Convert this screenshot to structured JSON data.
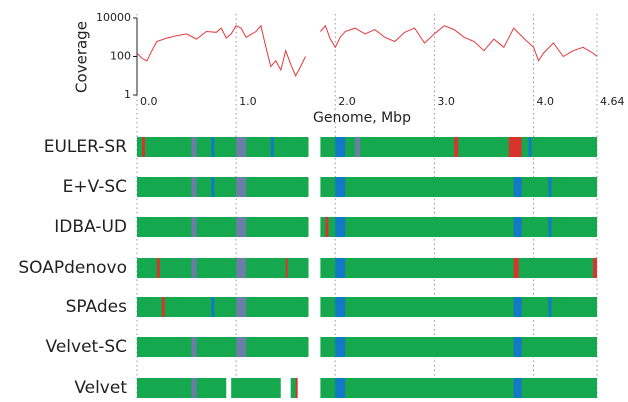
{
  "chart_data": [
    {
      "type": "line",
      "y_label": "Coverage",
      "x_label": "Genome, Mbp",
      "color": "#e8383b",
      "log_y": true,
      "ylim": [
        1,
        10000
      ],
      "yticks": [
        1,
        100,
        10000
      ],
      "xlim": [
        0,
        4.64
      ],
      "xticks": [
        {
          "value": 0,
          "label": "0.0"
        },
        {
          "value": 1,
          "label": "1.0"
        },
        {
          "value": 2,
          "label": "2.0"
        },
        {
          "value": 3,
          "label": "3.0"
        },
        {
          "value": 4,
          "label": "4.0"
        },
        4.64
      ],
      "x": [
        0,
        0.05,
        0.1,
        0.15,
        0.2,
        0.3,
        0.4,
        0.5,
        0.6,
        0.7,
        0.8,
        0.85,
        0.9,
        0.95,
        1.0,
        1.05,
        1.1,
        1.2,
        1.25,
        1.3,
        1.35,
        1.4,
        1.45,
        1.5,
        1.55,
        1.6,
        1.65,
        1.7,
        1.75,
        1.85,
        1.9,
        1.95,
        2.0,
        2.05,
        2.1,
        2.2,
        2.3,
        2.4,
        2.5,
        2.6,
        2.7,
        2.8,
        2.9,
        3.0,
        3.1,
        3.2,
        3.3,
        3.4,
        3.5,
        3.6,
        3.7,
        3.8,
        3.9,
        4.0,
        4.05,
        4.1,
        4.2,
        4.3,
        4.4,
        4.5,
        4.6,
        4.64
      ],
      "values": [
        150,
        80,
        60,
        200,
        600,
        900,
        1200,
        1500,
        800,
        2000,
        1800,
        3000,
        900,
        1500,
        4000,
        3000,
        1000,
        2000,
        4000,
        300,
        30,
        60,
        20,
        200,
        40,
        10,
        30,
        100,
        null,
        2000,
        4000,
        800,
        300,
        1000,
        2000,
        3000,
        1500,
        2500,
        1000,
        600,
        1800,
        3000,
        500,
        1500,
        4000,
        2500,
        1000,
        600,
        200,
        800,
        300,
        3000,
        900,
        300,
        60,
        150,
        500,
        100,
        200,
        300,
        150,
        100
      ]
    },
    {
      "type": "track",
      "tracks": [
        {
          "name": "EULER-SR",
          "segments": [
            [
              0,
              1.73,
              "#16a84f"
            ],
            [
              1.85,
              4.64,
              "#16a84f"
            ],
            [
              0.05,
              0.08,
              "#d9342b"
            ],
            [
              0.55,
              0.6,
              "#6b7fa6"
            ],
            [
              0.75,
              0.78,
              "#1478c8"
            ],
            [
              1.0,
              1.1,
              "#6b7fa6"
            ],
            [
              1.35,
              1.38,
              "#1478c8"
            ],
            [
              2.0,
              2.1,
              "#1478c8"
            ],
            [
              2.2,
              2.25,
              "#6b7fa6"
            ],
            [
              3.2,
              3.24,
              "#d9342b"
            ],
            [
              3.75,
              3.88,
              "#d9342b"
            ],
            [
              3.95,
              3.98,
              "#1478c8"
            ]
          ]
        },
        {
          "name": "E+V-SC",
          "segments": [
            [
              0,
              1.73,
              "#16a84f"
            ],
            [
              1.85,
              4.64,
              "#16a84f"
            ],
            [
              0.55,
              0.6,
              "#6b7fa6"
            ],
            [
              0.75,
              0.78,
              "#1478c8"
            ],
            [
              1.0,
              1.1,
              "#6b7fa6"
            ],
            [
              2.0,
              2.1,
              "#1478c8"
            ],
            [
              3.8,
              3.88,
              "#1478c8"
            ],
            [
              4.15,
              4.18,
              "#1478c8"
            ]
          ]
        },
        {
          "name": "IDBA-UD",
          "segments": [
            [
              0,
              1.73,
              "#16a84f"
            ],
            [
              1.85,
              4.64,
              "#16a84f"
            ],
            [
              0.55,
              0.6,
              "#6b7fa6"
            ],
            [
              1.0,
              1.1,
              "#6b7fa6"
            ],
            [
              1.9,
              1.93,
              "#d9342b"
            ],
            [
              2.0,
              2.1,
              "#1478c8"
            ],
            [
              3.8,
              3.88,
              "#1478c8"
            ],
            [
              4.15,
              4.18,
              "#1478c8"
            ]
          ]
        },
        {
          "name": "SOAPdenovo",
          "segments": [
            [
              0,
              1.73,
              "#16a84f"
            ],
            [
              1.85,
              4.64,
              "#16a84f"
            ],
            [
              0.2,
              0.23,
              "#d9342b"
            ],
            [
              0.55,
              0.6,
              "#6b7fa6"
            ],
            [
              1.0,
              1.1,
              "#6b7fa6"
            ],
            [
              1.5,
              1.52,
              "#d9342b"
            ],
            [
              2.0,
              2.1,
              "#1478c8"
            ],
            [
              3.8,
              3.85,
              "#d9342b"
            ],
            [
              4.6,
              4.64,
              "#d9342b"
            ]
          ]
        },
        {
          "name": "SPAdes",
          "segments": [
            [
              0,
              1.73,
              "#16a84f"
            ],
            [
              1.85,
              4.64,
              "#16a84f"
            ],
            [
              0.25,
              0.28,
              "#d9342b"
            ],
            [
              0.75,
              0.78,
              "#1478c8"
            ],
            [
              1.0,
              1.1,
              "#6b7fa6"
            ],
            [
              2.0,
              2.1,
              "#1478c8"
            ],
            [
              3.8,
              3.88,
              "#1478c8"
            ],
            [
              4.15,
              4.18,
              "#1478c8"
            ]
          ]
        },
        {
          "name": "Velvet-SC",
          "segments": [
            [
              0,
              1.73,
              "#16a84f"
            ],
            [
              1.85,
              4.64,
              "#16a84f"
            ],
            [
              0.55,
              0.6,
              "#6b7fa6"
            ],
            [
              1.0,
              1.1,
              "#6b7fa6"
            ],
            [
              2.0,
              2.1,
              "#1478c8"
            ],
            [
              3.8,
              3.88,
              "#1478c8"
            ]
          ]
        },
        {
          "name": "Velvet",
          "segments": [
            [
              0,
              0.9,
              "#16a84f"
            ],
            [
              0.95,
              1.45,
              "#16a84f"
            ],
            [
              1.55,
              1.62,
              "#16a84f"
            ],
            [
              1.85,
              4.64,
              "#16a84f"
            ],
            [
              0.55,
              0.6,
              "#6b7fa6"
            ],
            [
              1.6,
              1.62,
              "#d9342b"
            ],
            [
              2.0,
              2.1,
              "#1478c8"
            ],
            [
              3.8,
              3.88,
              "#1478c8"
            ]
          ]
        }
      ]
    }
  ]
}
